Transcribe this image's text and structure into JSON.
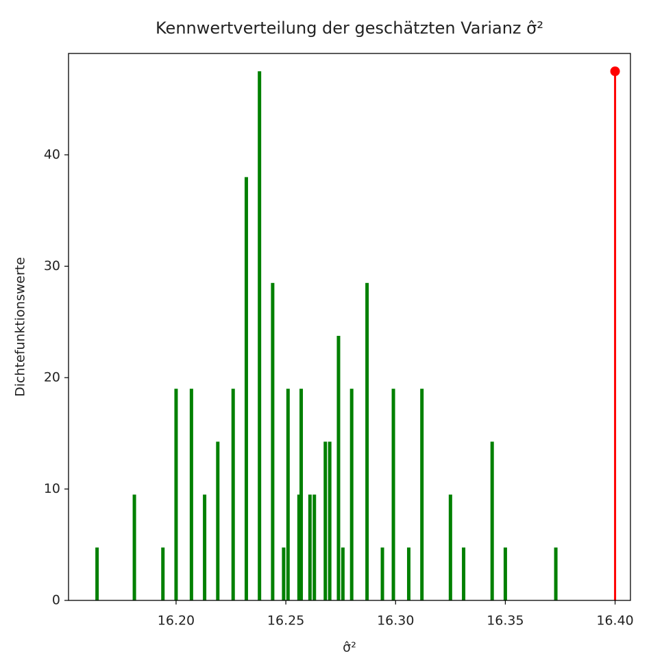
{
  "chart_data": {
    "type": "bar",
    "title": "Kennwertverteilung der geschätzten Varianz σ̂²",
    "xlabel": "σ̂²",
    "ylabel": "Dichtefunktionswerte",
    "x": [
      16.164,
      16.181,
      16.194,
      16.2,
      16.207,
      16.213,
      16.219,
      16.226,
      16.232,
      16.238,
      16.244,
      16.249,
      16.251,
      16.256,
      16.257,
      16.261,
      16.263,
      16.268,
      16.27,
      16.274,
      16.276,
      16.28,
      16.287,
      16.294,
      16.299,
      16.306,
      16.312,
      16.325,
      16.331,
      16.344,
      16.35,
      16.373
    ],
    "values": [
      4.75,
      9.5,
      4.75,
      19,
      19,
      9.5,
      14.25,
      19,
      38,
      47.5,
      28.5,
      4.75,
      19,
      9.5,
      19,
      9.5,
      9.5,
      14.25,
      14.25,
      23.75,
      4.75,
      19,
      28.5,
      4.75,
      19,
      4.75,
      19,
      9.5,
      4.75,
      14.25,
      4.75,
      4.75
    ],
    "color": "#008000",
    "reference": {
      "x": 16.4,
      "y": 47.5,
      "color": "#ff0000"
    },
    "xlim": [
      16.151,
      16.407
    ],
    "ylim": [
      0,
      49.1
    ],
    "xticks": [
      {
        "value": 16.2,
        "label": "16.20"
      },
      {
        "value": 16.25,
        "label": "16.25"
      },
      {
        "value": 16.3,
        "label": "16.30"
      },
      {
        "value": 16.35,
        "label": "16.35"
      },
      {
        "value": 16.4,
        "label": "16.40"
      }
    ],
    "yticks": [
      0,
      10,
      20,
      30,
      40
    ],
    "grid": false
  }
}
